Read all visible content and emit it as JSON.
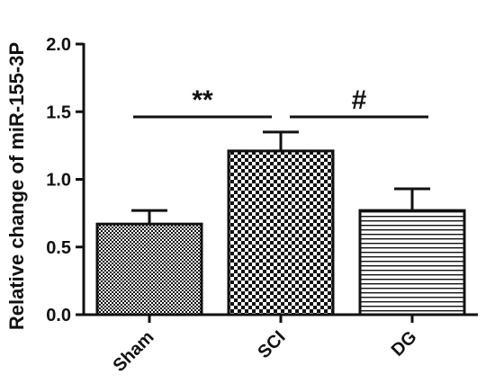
{
  "chart_data": {
    "type": "bar",
    "ylabel": "Relative change of miR-155-3P",
    "xlabel": "",
    "title": "",
    "categories": [
      "Sham",
      "SCI",
      "DG"
    ],
    "values": [
      0.67,
      1.21,
      0.77
    ],
    "errors": [
      0.1,
      0.14,
      0.16
    ],
    "ylim": [
      0.0,
      2.0
    ],
    "yticks": [
      "0.0",
      "0.5",
      "1.0",
      "1.5",
      "2.0"
    ],
    "fills": [
      "fine-checker",
      "coarse-checker",
      "horizontal-lines"
    ],
    "significance": [
      {
        "label": "**",
        "from": "Sham",
        "to": "SCI"
      },
      {
        "label": "#",
        "from": "SCI",
        "to": "DG"
      }
    ],
    "grid": false,
    "legend": "none",
    "colors": {
      "ink": "#111111",
      "background": "#ffffff"
    }
  }
}
